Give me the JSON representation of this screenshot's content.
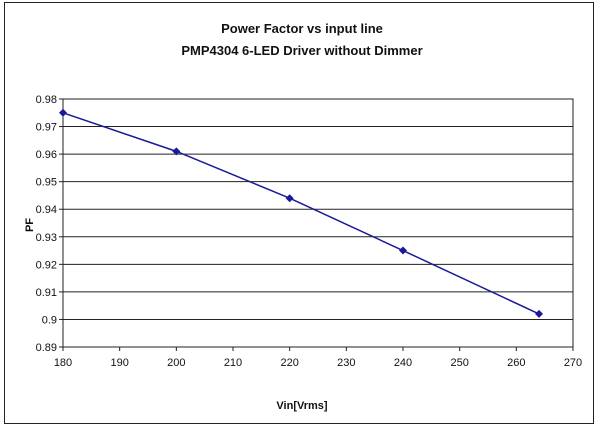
{
  "chart_data": {
    "type": "line",
    "title": "Power Factor vs input line",
    "subtitle": "PMP4304 6-LED Driver without Dimmer",
    "xlabel": "Vin[Vrms]",
    "ylabel": "PF",
    "xlim": [
      180,
      270
    ],
    "ylim": [
      0.89,
      0.98
    ],
    "x_ticks": [
      "180",
      "190",
      "200",
      "210",
      "220",
      "230",
      "240",
      "250",
      "260",
      "270"
    ],
    "y_ticks": [
      "0.98",
      "0.97",
      "0.96",
      "0.95",
      "0.94",
      "0.93",
      "0.92",
      "0.91",
      "0.9",
      "0.89"
    ],
    "grid": "horizontal",
    "legend": "none",
    "series": [
      {
        "x": [
          180,
          200,
          220,
          240,
          264
        ],
        "values": [
          0.975,
          0.961,
          0.944,
          0.925,
          0.902
        ],
        "color": "#1a1a99"
      }
    ]
  }
}
